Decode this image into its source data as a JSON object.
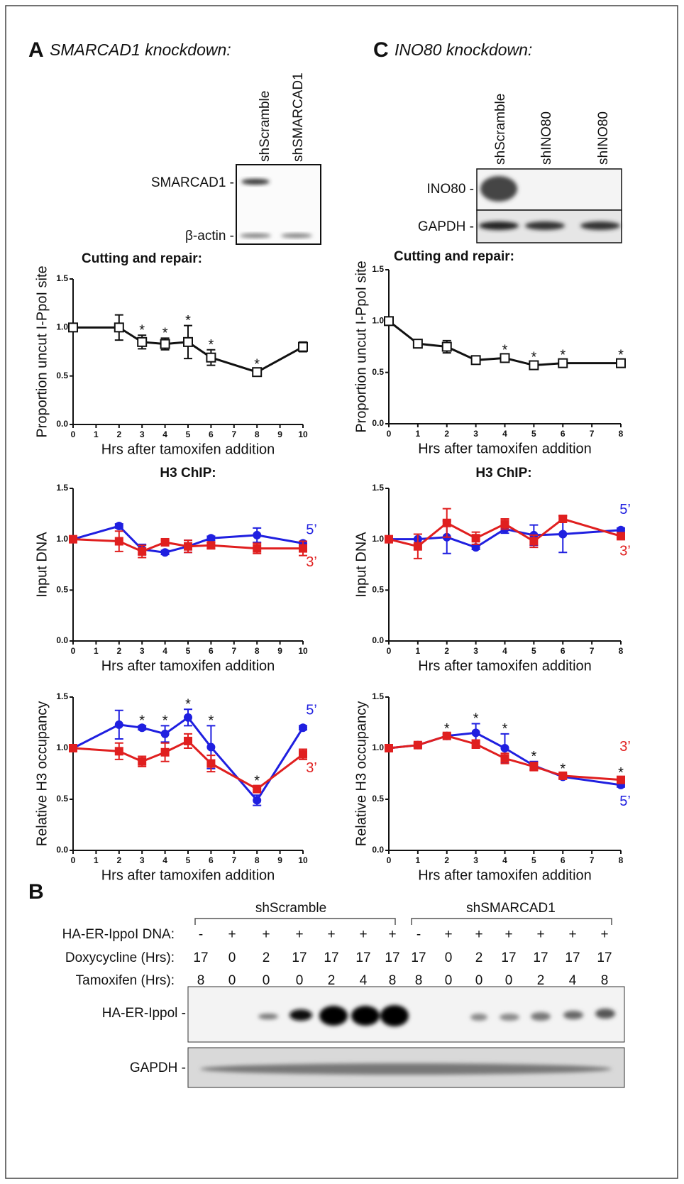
{
  "panels": {
    "A": {
      "letter": "A",
      "title": "SMARCAD1 knockdown:"
    },
    "B": {
      "letter": "B"
    },
    "C": {
      "letter": "C",
      "title": "INO80 knockdown:"
    }
  },
  "blots": {
    "A": {
      "lanes": [
        "shScramble",
        "shSMARCAD1"
      ],
      "rows": [
        "SMARCAD1 -",
        "β-actin -"
      ]
    },
    "C": {
      "lanes": [
        "shScramble",
        "shINO80",
        "shINO80"
      ],
      "rows": [
        "INO80 -",
        "GAPDH -"
      ]
    },
    "B": {
      "groups": [
        "shScramble",
        "shSMARCAD1"
      ],
      "conditions": [
        {
          "label": "HA-ER-IppoI DNA:",
          "values": [
            "-",
            "+",
            "+",
            "+",
            "+",
            "+",
            "+",
            "-",
            "+",
            "+",
            "+",
            "+",
            "+",
            "+"
          ]
        },
        {
          "label": "Doxycycline (Hrs):",
          "values": [
            17,
            0,
            2,
            17,
            17,
            17,
            17,
            17,
            0,
            2,
            17,
            17,
            17,
            17
          ]
        },
        {
          "label": "Tamoxifen (Hrs):",
          "values": [
            8,
            0,
            0,
            0,
            2,
            4,
            8,
            8,
            0,
            0,
            0,
            2,
            4,
            8
          ]
        }
      ],
      "rows": [
        "HA-ER-Ippol -",
        "GAPDH -"
      ]
    }
  },
  "chart_data": [
    {
      "type": "line",
      "title": "Cutting and repair:",
      "xlabel": "Hrs after tamoxifen addition",
      "ylabel": "Proportion uncut I-PpoI site",
      "x": [
        0,
        2,
        3,
        4,
        5,
        6,
        8,
        10
      ],
      "xlim": [
        0,
        10
      ],
      "xticks": [
        0,
        1,
        2,
        3,
        4,
        5,
        6,
        7,
        8,
        9,
        10
      ],
      "ylim": [
        0,
        1.5
      ],
      "yticks": [
        {
          "value": 0,
          "label": "0.0"
        },
        {
          "value": 0.5,
          "label": "0.5"
        },
        {
          "value": 1,
          "label": "1.0"
        },
        {
          "value": 1.5,
          "label": "1.5"
        }
      ],
      "series": [
        {
          "color": "#111111",
          "marker": "open-square",
          "values": [
            1.0,
            1.0,
            0.85,
            0.83,
            0.85,
            0.69,
            0.54,
            0.8
          ],
          "errors": [
            0.02,
            0.13,
            0.07,
            0.06,
            0.17,
            0.08,
            0.03,
            0.05
          ]
        }
      ],
      "sig_label": "*",
      "sig_x": [
        3,
        4,
        5,
        6,
        8
      ]
    },
    {
      "type": "line",
      "title": "H3 ChIP:",
      "xlabel": "Hrs after tamoxifen addition",
      "ylabel": "Input DNA",
      "x": [
        0,
        2,
        3,
        4,
        5,
        6,
        8,
        10
      ],
      "xlim": [
        0,
        10
      ],
      "xticks": [
        0,
        1,
        2,
        3,
        4,
        5,
        6,
        7,
        8,
        9,
        10
      ],
      "ylim": [
        0,
        1.5
      ],
      "yticks": [
        {
          "value": 0,
          "label": "0.0"
        },
        {
          "value": 0.5,
          "label": "0.5"
        },
        {
          "value": 1,
          "label": "1.0"
        },
        {
          "value": 1.5,
          "label": "1.5"
        }
      ],
      "series": [
        {
          "name": "5’",
          "color": "#1f1fe0",
          "marker": "circle",
          "values": [
            1.0,
            1.13,
            0.9,
            0.87,
            0.93,
            1.01,
            1.04,
            0.96
          ],
          "errors": [
            0.02,
            0.02,
            0.05,
            0.02,
            0.06,
            0.02,
            0.07,
            0.02
          ]
        },
        {
          "name": "3’",
          "color": "#e01f1f",
          "marker": "square",
          "values": [
            1.0,
            0.98,
            0.88,
            0.97,
            0.93,
            0.94,
            0.91,
            0.91
          ],
          "errors": [
            0.02,
            0.1,
            0.06,
            0.02,
            0.06,
            0.03,
            0.05,
            0.07
          ]
        }
      ]
    },
    {
      "type": "line",
      "xlabel": "Hrs after tamoxifen addition",
      "ylabel": "Relative H3 occupancy",
      "x": [
        0,
        2,
        3,
        4,
        5,
        6,
        8,
        10
      ],
      "xlim": [
        0,
        10
      ],
      "xticks": [
        0,
        1,
        2,
        3,
        4,
        5,
        6,
        7,
        8,
        9,
        10
      ],
      "ylim": [
        0,
        1.5
      ],
      "yticks": [
        {
          "value": 0,
          "label": "0.0"
        },
        {
          "value": 0.5,
          "label": "0.5"
        },
        {
          "value": 1,
          "label": "1.0"
        },
        {
          "value": 1.5,
          "label": "1.5"
        }
      ],
      "series": [
        {
          "name": "5’",
          "color": "#1f1fe0",
          "marker": "circle",
          "values": [
            1.0,
            1.23,
            1.2,
            1.14,
            1.3,
            1.01,
            0.49,
            1.2
          ],
          "errors": [
            0.02,
            0.14,
            0.02,
            0.08,
            0.08,
            0.21,
            0.05,
            0.02
          ]
        },
        {
          "name": "3’",
          "color": "#e01f1f",
          "marker": "square",
          "values": [
            1.0,
            0.97,
            0.87,
            0.96,
            1.07,
            0.85,
            0.6,
            0.94
          ],
          "errors": [
            0.02,
            0.08,
            0.05,
            0.09,
            0.07,
            0.08,
            0.03,
            0.05
          ]
        }
      ],
      "sig_label": "*",
      "sig_x": [
        3,
        4,
        5,
        6,
        8
      ]
    },
    {
      "type": "line",
      "title": "Cutting and repair:",
      "xlabel": "Hrs after tamoxifen addition",
      "ylabel": "Proportion uncut I-PpoI site",
      "x": [
        0,
        1,
        2,
        3,
        4,
        5,
        6,
        8
      ],
      "xlim": [
        0,
        8
      ],
      "xticks": [
        0,
        1,
        2,
        3,
        4,
        5,
        6,
        7,
        8
      ],
      "ylim": [
        0,
        1.5
      ],
      "yticks": [
        {
          "value": 0,
          "label": "0.0"
        },
        {
          "value": 0.5,
          "label": "0.5"
        },
        {
          "value": 1,
          "label": "1.0"
        },
        {
          "value": 1.5,
          "label": "1.5"
        }
      ],
      "series": [
        {
          "color": "#111111",
          "marker": "open-square",
          "values": [
            1.0,
            0.78,
            0.75,
            0.62,
            0.64,
            0.57,
            0.59,
            0.59
          ],
          "errors": [
            0.03,
            0.03,
            0.06,
            0.03,
            0.03,
            0.03,
            0.03,
            0.03
          ]
        }
      ],
      "sig_label": "*",
      "sig_x": [
        4,
        5,
        6,
        8
      ]
    },
    {
      "type": "line",
      "title": "H3 ChIP:",
      "xlabel": "Hrs after tamoxifen addition",
      "ylabel": "Input DNA",
      "x": [
        0,
        1,
        2,
        3,
        4,
        5,
        6,
        8
      ],
      "xlim": [
        0,
        8
      ],
      "xticks": [
        0,
        1,
        2,
        3,
        4,
        5,
        6,
        7,
        8
      ],
      "ylim": [
        0,
        1.5
      ],
      "yticks": [
        {
          "value": 0,
          "label": "0.0"
        },
        {
          "value": 0.5,
          "label": "0.5"
        },
        {
          "value": 1,
          "label": "1.0"
        },
        {
          "value": 1.5,
          "label": "1.5"
        }
      ],
      "series": [
        {
          "name": "5’",
          "color": "#1f1fe0",
          "marker": "circle",
          "values": [
            1.0,
            1.0,
            1.02,
            0.92,
            1.1,
            1.04,
            1.05,
            1.09
          ],
          "errors": [
            0.02,
            0.05,
            0.16,
            0.02,
            0.04,
            0.1,
            0.18,
            0.02
          ]
        },
        {
          "name": "3’",
          "color": "#e01f1f",
          "marker": "square",
          "values": [
            1.0,
            0.93,
            1.16,
            1.01,
            1.15,
            0.98,
            1.2,
            1.03
          ],
          "errors": [
            0.02,
            0.12,
            0.14,
            0.06,
            0.05,
            0.06,
            0.03,
            0.02
          ]
        }
      ]
    },
    {
      "type": "line",
      "xlabel": "Hrs after tamoxifen addition",
      "ylabel": "Relative H3 occupancy",
      "x": [
        0,
        1,
        2,
        3,
        4,
        5,
        6,
        8
      ],
      "xlim": [
        0,
        8
      ],
      "xticks": [
        0,
        1,
        2,
        3,
        4,
        5,
        6,
        7,
        8
      ],
      "ylim": [
        0,
        1.5
      ],
      "yticks": [
        {
          "value": 0,
          "label": "0.0"
        },
        {
          "value": 0.5,
          "label": "0.5"
        },
        {
          "value": 1,
          "label": "1.0"
        },
        {
          "value": 1.5,
          "label": "1.5"
        }
      ],
      "series": [
        {
          "name": "5’",
          "color": "#1f1fe0",
          "marker": "circle",
          "values": [
            1.0,
            1.03,
            1.12,
            1.15,
            1.0,
            0.83,
            0.72,
            0.64
          ],
          "errors": [
            0.02,
            0.02,
            0.02,
            0.09,
            0.14,
            0.04,
            0.02,
            0.02
          ]
        },
        {
          "name": "3’",
          "color": "#e01f1f",
          "marker": "square",
          "values": [
            1.0,
            1.03,
            1.12,
            1.04,
            0.9,
            0.82,
            0.73,
            0.69
          ],
          "errors": [
            0.02,
            0.02,
            0.02,
            0.04,
            0.05,
            0.04,
            0.02,
            0.02
          ]
        }
      ],
      "sig_label": "*",
      "sig_x": [
        2,
        3,
        4,
        5,
        6,
        8
      ]
    }
  ]
}
